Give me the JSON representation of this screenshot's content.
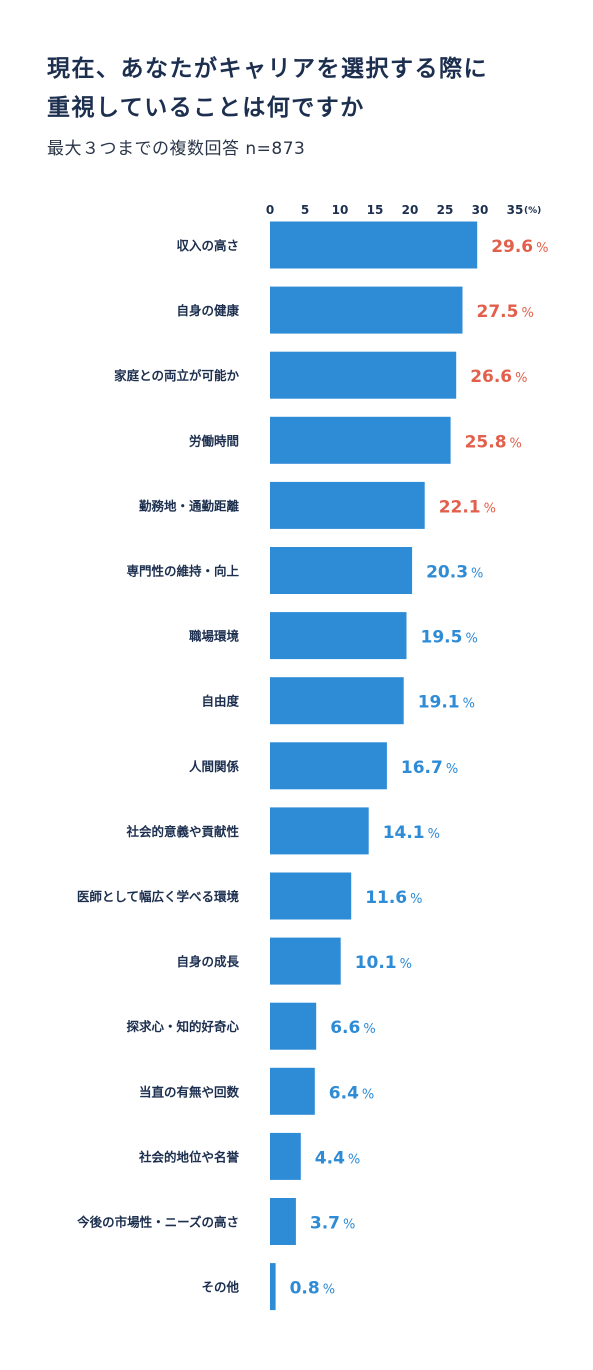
{
  "header": {
    "title_line1": "現在、あなたがキャリアを選択する際に",
    "title_line2": "重視していることは何ですか",
    "subtitle": "最大３つまでの複数回答 n=873"
  },
  "colors": {
    "bar": "#2e8bd6",
    "highlight_value": "#e2604b",
    "normal_value": "#2e8bd6",
    "text": "#1d2f4f"
  },
  "chart_data": {
    "type": "bar",
    "orientation": "horizontal",
    "x_ticks": [
      "0",
      "5",
      "10",
      "15",
      "20",
      "25",
      "30",
      "35"
    ],
    "x_unit": "(%)",
    "xlim": [
      0,
      35
    ],
    "grid": false,
    "legend": "none",
    "value_suffix": "%",
    "categories": [
      "収入の高さ",
      "自身の健康",
      "家庭との両立が可能か",
      "労働時間",
      "勤務地・通勤距離",
      "専門性の維持・向上",
      "職場環境",
      "自由度",
      "人間関係",
      "社会的意義や貢献性",
      "医師として幅広く学べる環境",
      "自身の成長",
      "探求心・知的好奇心",
      "当直の有無や回数",
      "社会的地位や名誉",
      "今後の市場性・ニーズの高さ",
      "その他"
    ],
    "values": [
      29.6,
      27.5,
      26.6,
      25.8,
      22.1,
      20.3,
      19.5,
      19.1,
      16.7,
      14.1,
      11.6,
      10.1,
      6.6,
      6.4,
      4.4,
      3.7,
      0.8
    ],
    "value_labels": [
      "29.6",
      "27.5",
      "26.6",
      "25.8",
      "22.1",
      "20.3",
      "19.5",
      "19.1",
      "16.7",
      "14.1",
      "11.6",
      "10.1",
      "6.6",
      "6.4",
      "4.4",
      "3.7",
      "0.8"
    ],
    "highlighted_top_n": 5
  }
}
